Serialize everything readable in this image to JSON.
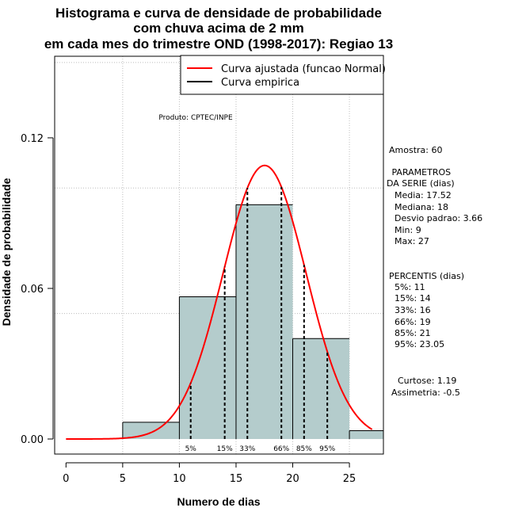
{
  "chart_data": {
    "type": "bar",
    "title_lines": [
      "Histograma e curva de densidade de probabilidade",
      "com chuva acima de 2 mm",
      "em cada mes do trimestre OND (1998-2017): Regiao 13"
    ],
    "xlabel": "Numero de dias",
    "ylabel": "Densidade de probabilidade",
    "xlim": [
      -1,
      28
    ],
    "ylim": [
      -0.006,
      0.1525
    ],
    "xticks": [
      0,
      5,
      10,
      15,
      20,
      25
    ],
    "yticks": [
      0.0,
      0.06,
      0.12
    ],
    "ytick_labels": [
      "0.00",
      "0.06",
      "0.12"
    ],
    "grid_x": [
      5,
      10,
      15,
      20,
      25
    ],
    "grid_y": [
      0.05,
      0.1,
      0.15
    ],
    "histogram": {
      "bin_edges": [
        5,
        10,
        15,
        20,
        25,
        30
      ],
      "densities": [
        0.00667,
        0.05667,
        0.09333,
        0.04,
        0.00333
      ],
      "fill_color": "#b4cccc"
    },
    "normal_fit": {
      "mean": 17.52,
      "sd": 3.66,
      "x_range": [
        0,
        27
      ],
      "color": "#ff0000"
    },
    "percentile_lines": [
      {
        "label": "5%",
        "x": 11
      },
      {
        "label": "15%",
        "x": 14
      },
      {
        "label": "33%",
        "x": 16
      },
      {
        "label": "66%",
        "x": 19
      },
      {
        "label": "85%",
        "x": 21
      },
      {
        "label": "95%",
        "x": 23.05
      }
    ],
    "legend": [
      {
        "label": "Curva ajustada (funcao Normal)",
        "color": "#ff0000"
      },
      {
        "label": "Curva empirica",
        "color": "#000000"
      }
    ],
    "legend_position": "top-right",
    "annotation": "Produto: CPTEC/INPE"
  },
  "side_panel": {
    "sample": "Amostra: 60",
    "params_title": " PARAMETROS",
    "params_subtitle": "DA SERIE (dias)",
    "params": [
      "  Media: 17.52",
      "  Mediana: 18",
      "  Desvio padrao: 3.66",
      "  Min: 9",
      "  Max: 27"
    ],
    "percentis_title": "PERCENTIS (dias)",
    "percentis": [
      "  5%: 11",
      "  15%: 14",
      "  33%: 16",
      "  66%: 19",
      "  85%: 21",
      "  95%: 23.05"
    ],
    "curtose": "Curtose: 1.19",
    "assimetria": "Assimetria: -0.5"
  }
}
